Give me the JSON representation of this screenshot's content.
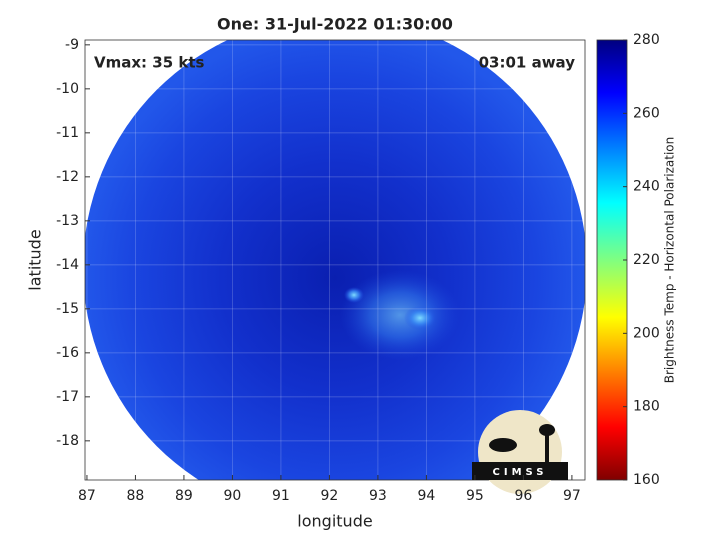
{
  "chart_data": {
    "type": "map",
    "title": "One: 31-Jul-2022 01:30:00",
    "annotations": [
      "Vmax: 35 kts",
      "03:01 away"
    ],
    "xlabel": "longitude",
    "ylabel": "latitude",
    "xlim": [
      86.96,
      97.27
    ],
    "xticks": [
      87,
      88,
      89,
      90,
      91,
      92,
      93,
      94,
      95,
      96,
      97
    ],
    "ylim": [
      -18.89,
      -8.89
    ],
    "yticks": [
      -18,
      -17,
      -16,
      -15,
      -14,
      -13,
      -12,
      -11,
      -10,
      -9
    ],
    "grid": true,
    "colorbar": {
      "label": "Brightness Temp - Horizontal Polarization",
      "lim": [
        160,
        280
      ],
      "ticks": [
        160,
        180,
        200,
        220,
        240,
        260,
        280
      ],
      "colormap": "jet"
    },
    "logo": "CIMSS"
  }
}
